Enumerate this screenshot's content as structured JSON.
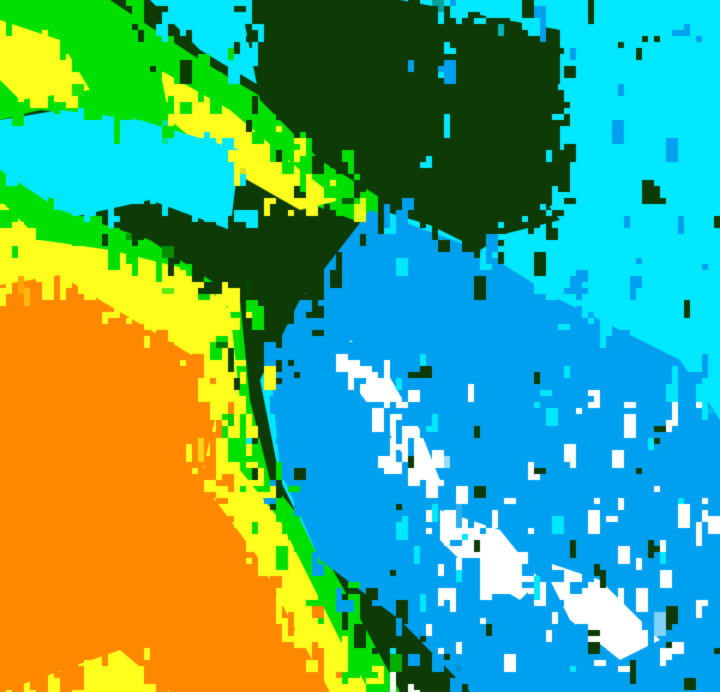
{
  "map": {
    "type": "classified-raster",
    "palette": {
      "background": "#0d3a05",
      "cyan": "#00e8ff",
      "light_blue": "#00a0f0",
      "white": "#ffffff",
      "green": "#00e000",
      "yellow": "#ffff1e",
      "orange": "#ff8800"
    }
  }
}
